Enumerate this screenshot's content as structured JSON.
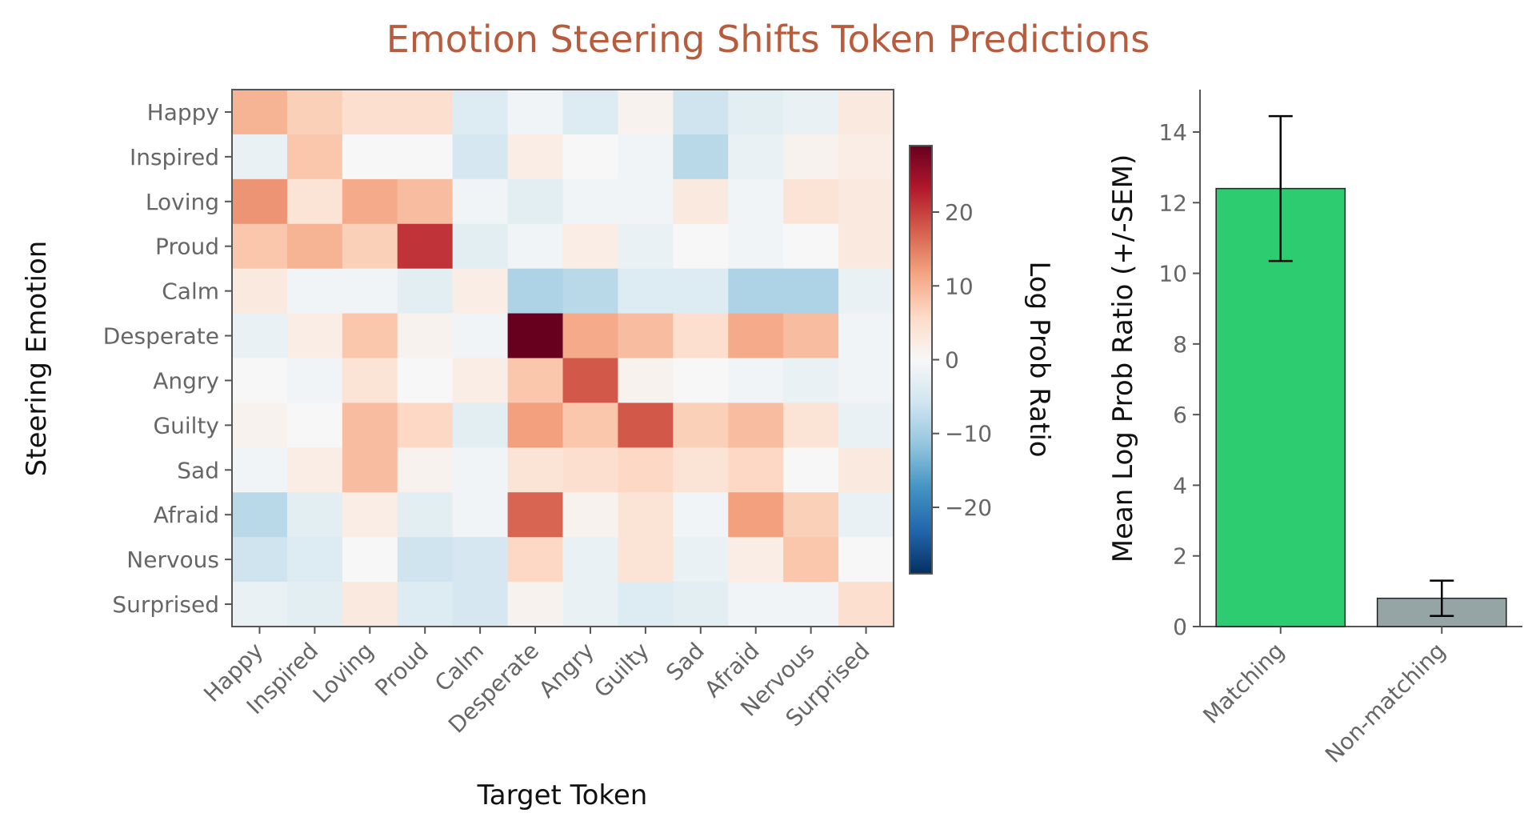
{
  "title": "Emotion Steering Shifts Token Predictions",
  "chart_data": [
    {
      "type": "heatmap",
      "xlabel": "Target Token",
      "ylabel": "Steering Emotion",
      "x_categories": [
        "Happy",
        "Inspired",
        "Loving",
        "Proud",
        "Calm",
        "Desperate",
        "Angry",
        "Guilty",
        "Sad",
        "Afraid",
        "Nervous",
        "Surprised"
      ],
      "y_categories": [
        "Happy",
        "Inspired",
        "Loving",
        "Proud",
        "Calm",
        "Desperate",
        "Angry",
        "Guilty",
        "Sad",
        "Afraid",
        "Nervous",
        "Surprised"
      ],
      "values": [
        [
          10,
          7,
          5,
          5,
          -4,
          -1,
          -4,
          1,
          -6,
          -3,
          -2,
          3
        ],
        [
          -2,
          8,
          0,
          0,
          -5,
          2,
          0,
          -1,
          -8,
          -2,
          1,
          2
        ],
        [
          13,
          4,
          11,
          9,
          -1,
          -3,
          -1,
          -1,
          3,
          -1,
          4,
          3
        ],
        [
          8,
          10,
          7,
          21,
          -3,
          -1,
          2,
          -2,
          0,
          -1,
          0,
          3
        ],
        [
          3,
          -1,
          -1,
          -3,
          2,
          -9,
          -8,
          -4,
          -4,
          -9,
          -9,
          -2
        ],
        [
          -2,
          2,
          8,
          1,
          -1,
          29,
          11,
          9,
          5,
          11,
          9,
          -1
        ],
        [
          0,
          -1,
          4,
          0,
          2,
          8,
          18,
          1,
          0,
          -1,
          -2,
          -1
        ],
        [
          1,
          0,
          9,
          6,
          -3,
          12,
          8,
          18,
          7,
          9,
          4,
          -2
        ],
        [
          -1,
          2,
          9,
          1,
          -1,
          4,
          5,
          6,
          4,
          6,
          0,
          3
        ],
        [
          -8,
          -3,
          2,
          -3,
          -1,
          17,
          1,
          4,
          -1,
          12,
          7,
          -2
        ],
        [
          -6,
          -4,
          0,
          -6,
          -5,
          6,
          -2,
          4,
          -2,
          2,
          8,
          0
        ],
        [
          -2,
          -3,
          3,
          -4,
          -5,
          1,
          -2,
          -4,
          -3,
          -1,
          -1,
          5
        ]
      ],
      "colormap": "RdBu_r",
      "vmin": -29,
      "vmax": 29,
      "colorbar": {
        "label": "Log Prob Ratio",
        "ticks": [
          20,
          10,
          0,
          -10,
          -20
        ],
        "tick_labels": [
          "20",
          "10",
          "0",
          "−10",
          "−20"
        ]
      }
    },
    {
      "type": "bar",
      "categories": [
        "Matching",
        "Non-matching"
      ],
      "values": [
        12.4,
        0.8
      ],
      "errors": [
        2.05,
        0.5
      ],
      "colors": [
        "#2ecc71",
        "#95a5a6"
      ],
      "ylabel": "Mean Log Prob Ratio (+/-SEM)",
      "xlabel": "",
      "ylim": [
        0,
        15.2
      ],
      "yticks": [
        0,
        2,
        4,
        6,
        8,
        10,
        12,
        14
      ],
      "grid": false
    }
  ]
}
